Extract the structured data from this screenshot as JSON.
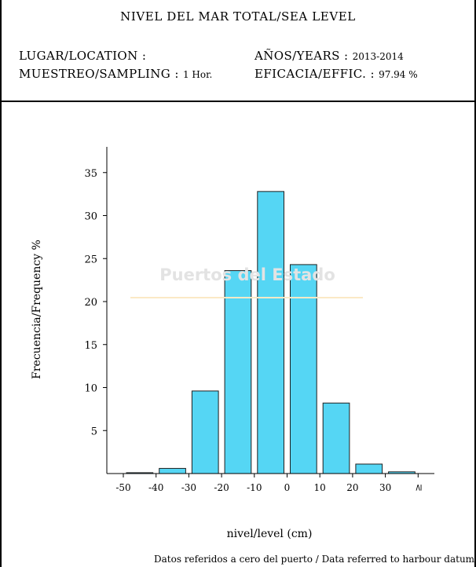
{
  "header": {
    "title": "NIVEL DEL MAR TOTAL/SEA LEVEL",
    "location_label": "LUGAR/LOCATION :",
    "location_value": "",
    "years_label": "AÑOS/YEARS :",
    "years_value": "2013-2014",
    "sampling_label": "MUESTREO/SAMPLING :",
    "sampling_value": "1 Hor.",
    "efficacy_label": "EFICACIA/EFFIC. :",
    "efficacy_value": "97.94 %"
  },
  "watermark": "Puertos del Estado",
  "footnote": "Datos referidos a cero del puerto / Data referred to harbour datum",
  "colors": {
    "bar_fill": "#55d6f4",
    "bar_stroke": "#1f1f1f",
    "axis": "#000000"
  },
  "chart_data": {
    "type": "bar",
    "xlabel": "nivel/level (cm)",
    "ylabel": "Frecuencia/Frequency %",
    "x_ticks": [
      "-50",
      "-40",
      "-30",
      "-20",
      "-10",
      "0",
      "10",
      "20",
      "30",
      "≥"
    ],
    "y_ticks": [
      5,
      10,
      15,
      20,
      25,
      30,
      35
    ],
    "ylim": [
      0,
      38
    ],
    "xlim": [
      -55,
      45
    ],
    "bars": [
      {
        "bin": [
          -50,
          -40
        ],
        "value": 0.1
      },
      {
        "bin": [
          -40,
          -30
        ],
        "value": 0.6
      },
      {
        "bin": [
          -30,
          -20
        ],
        "value": 9.6
      },
      {
        "bin": [
          -20,
          -10
        ],
        "value": 23.6
      },
      {
        "bin": [
          -10,
          0
        ],
        "value": 32.8
      },
      {
        "bin": [
          0,
          10
        ],
        "value": 24.3
      },
      {
        "bin": [
          10,
          20
        ],
        "value": 8.2
      },
      {
        "bin": [
          20,
          30
        ],
        "value": 1.1
      },
      {
        "bin": [
          30,
          40
        ],
        "value": 0.2
      }
    ],
    "grid": false,
    "legend": "none"
  }
}
